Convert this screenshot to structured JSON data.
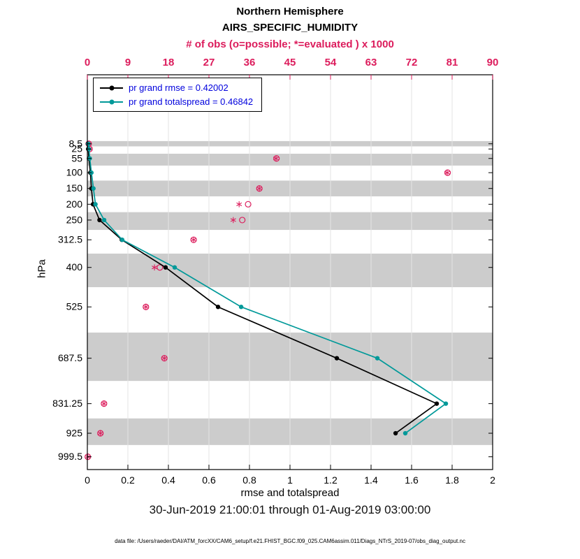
{
  "title": {
    "line1": "Northern Hemisphere",
    "line2": "AIRS_SPECIFIC_HUMIDITY"
  },
  "top_axis": {
    "label": "# of obs (o=possible; *=evaluated ) x 1000",
    "color": "#dc1c5c",
    "tick_values": [
      0,
      9,
      18,
      27,
      36,
      45,
      54,
      63,
      72,
      81,
      90
    ],
    "tick_labels": [
      "0",
      "9",
      "18",
      "27",
      "36",
      "45",
      "54",
      "63",
      "72",
      "81",
      "90"
    ],
    "range": [
      0,
      90
    ]
  },
  "bottom_axis": {
    "label": "rmse and totalspread",
    "tick_values": [
      0,
      0.2,
      0.4,
      0.6,
      0.8,
      1,
      1.2,
      1.4,
      1.6,
      1.8,
      2
    ],
    "tick_labels": [
      "0",
      "0.2",
      "0.4",
      "0.6",
      "0.8",
      "1",
      "1.2",
      "1.4",
      "1.6",
      "1.8",
      "2"
    ],
    "range": [
      0,
      2
    ]
  },
  "y_axis": {
    "label": "hPa",
    "tick_values": [
      8.5,
      25,
      55,
      100,
      150,
      200,
      250,
      312.5,
      400,
      525,
      687.5,
      831.25,
      925,
      999.5
    ],
    "tick_labels": [
      "8.5",
      "25",
      "55",
      "100",
      "150",
      "200",
      "250",
      "312.5",
      "400",
      "525",
      "687.5",
      "831.25",
      "925",
      "999.5"
    ]
  },
  "legend": [
    {
      "label": "pr grand rmse = 0.42002",
      "color": "#000000"
    },
    {
      "label": "pr grand totalspread = 0.46842",
      "color": "#009999"
    }
  ],
  "subtitle": "30-Jun-2019 21:00:01 through 01-Aug-2019 03:00:00",
  "footer": "data file: /Users/raeder/DAI/ATM_forcXX/CAM6_setup/f.e21.FHIST_BGC.f09_025.CAM6assim.011/Diags_NTrS_2019-07/obs_diag_output.nc",
  "chart_data": {
    "type": "line",
    "orientation": "vertical-profile",
    "title": "Northern Hemisphere AIRS_SPECIFIC_HUMIDITY",
    "xlabel_bottom": "rmse and totalspread",
    "xlabel_top": "# of obs (o=possible; *=evaluated ) x 1000",
    "ylabel": "hPa",
    "xlim_bottom": [
      0,
      2
    ],
    "xlim_top": [
      0,
      90
    ],
    "ylim": [
      -210,
      1040
    ],
    "y_inverted_pressure": true,
    "grid": "vertical-only",
    "legend_position": "top-left-inside",
    "pressure_levels": [
      8.5,
      25,
      55,
      100,
      150,
      200,
      250,
      312.5,
      400,
      525,
      687.5,
      831.25,
      925,
      999.5
    ],
    "series": [
      {
        "name": "pr grand rmse",
        "summary_value": 0.42002,
        "axis": "bottom",
        "color": "#000000",
        "marker": "filled-circle",
        "values": [
          0.003,
          0.004,
          0.008,
          0.015,
          0.02,
          0.028,
          0.06,
          0.17,
          0.386,
          0.645,
          1.231,
          1.724,
          1.521,
          null
        ]
      },
      {
        "name": "pr grand totalspread",
        "summary_value": 0.46842,
        "axis": "bottom",
        "color": "#009999",
        "marker": "filled-circle",
        "values": [
          0.005,
          0.008,
          0.012,
          0.02,
          0.03,
          0.04,
          0.083,
          0.172,
          0.431,
          0.759,
          1.431,
          1.769,
          1.569,
          null
        ]
      },
      {
        "name": "obs possible (o) x1000",
        "axis": "top",
        "color": "#dc1c5c",
        "marker": "open-circle",
        "values": [
          0.3,
          0.5,
          42,
          80,
          38.2,
          35.7,
          34.4,
          23.6,
          16.1,
          13.0,
          17.1,
          3.7,
          2.9,
          0.1
        ]
      },
      {
        "name": "obs evaluated (*) x1000",
        "axis": "top",
        "color": "#dc1c5c",
        "marker": "asterisk",
        "values": [
          0.3,
          0.5,
          41.9,
          79.9,
          38.2,
          33.7,
          32.4,
          23.6,
          14.9,
          13.0,
          17.1,
          3.7,
          2.9,
          0.1
        ]
      }
    ],
    "shaded_bands": [
      [
        0,
        16.75
      ],
      [
        40,
        77.5
      ],
      [
        125,
        175
      ],
      [
        225,
        281.25
      ],
      [
        356.25,
        462.5
      ],
      [
        606.25,
        759.375
      ],
      [
        878.125,
        962.25
      ]
    ],
    "band_color": "#cccccc",
    "gridline_color": "#e3e3e3"
  }
}
